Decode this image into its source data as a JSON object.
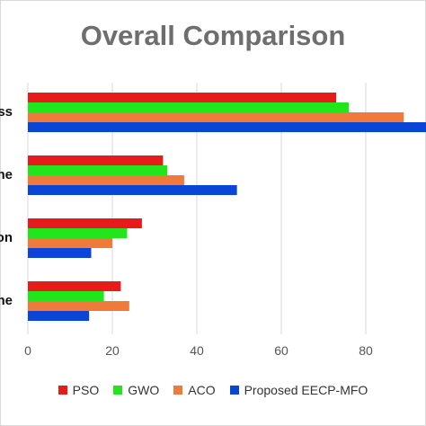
{
  "chart_data": {
    "type": "bar",
    "orientation": "horizontal",
    "title": "Overall Comparison",
    "categories": [
      "ss",
      "ne",
      "on",
      "ne"
    ],
    "series": [
      {
        "name": "PSO",
        "color": "#e81b1b",
        "values": [
          73,
          32,
          27,
          22
        ]
      },
      {
        "name": "GWO",
        "color": "#22e51b",
        "values": [
          76,
          33,
          23.5,
          18
        ]
      },
      {
        "name": "ACO",
        "color": "#f07a3a",
        "values": [
          89,
          37,
          20,
          24
        ]
      },
      {
        "name": "Proposed EECP-MFO",
        "color": "#0b45d6",
        "values": [
          98,
          49.5,
          15,
          14.5
        ]
      }
    ],
    "xticks": [
      "0",
      "20",
      "40",
      "60",
      "80"
    ],
    "xlim": [
      0,
      95
    ],
    "grid": true,
    "legend_position": "bottom"
  }
}
